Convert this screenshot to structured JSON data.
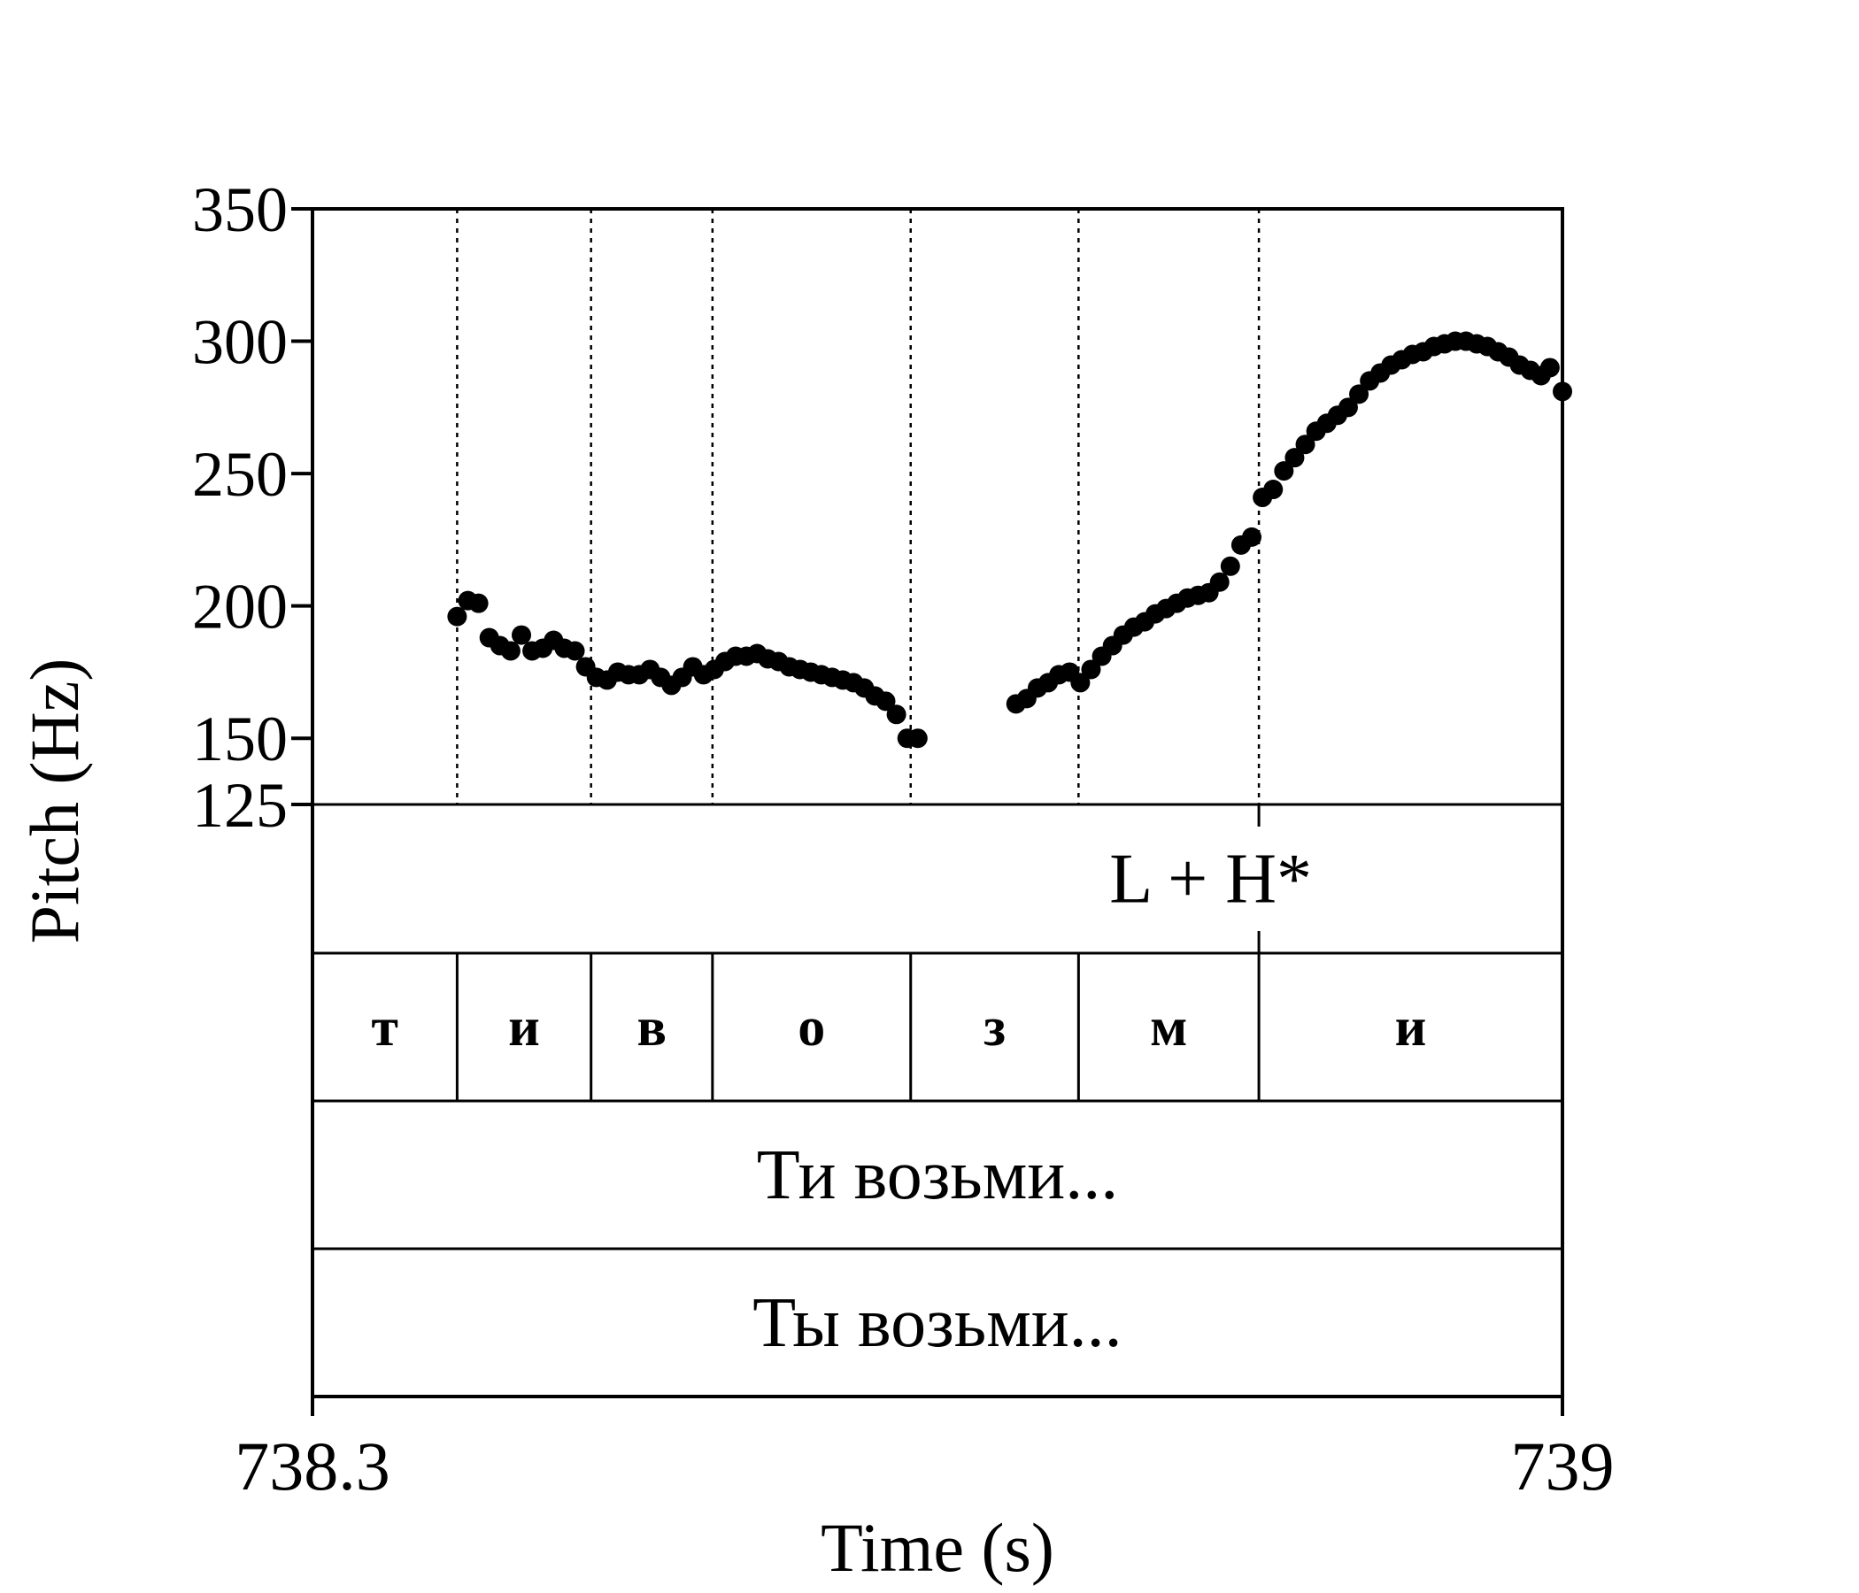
{
  "chart_data": {
    "type": "scatter",
    "xlabel": "Time (s)",
    "ylabel": "Pitch (Hz)",
    "xlim": [
      738.3,
      739
    ],
    "ylim": [
      125,
      350
    ],
    "x_ticks": [
      {
        "value": 738.3,
        "label": "738.3"
      },
      {
        "value": 739,
        "label": "739"
      }
    ],
    "y_ticks": [
      {
        "value": 350,
        "label": "350"
      },
      {
        "value": 300,
        "label": "300"
      },
      {
        "value": 250,
        "label": "250"
      },
      {
        "value": 200,
        "label": "200"
      },
      {
        "value": 150,
        "label": "150"
      },
      {
        "value": 125,
        "label": "125"
      }
    ],
    "segment_boundaries": [
      738.381,
      738.456,
      738.524,
      738.635,
      738.729,
      738.83
    ],
    "series": [
      {
        "color": "#000000",
        "points": [
          {
            "x": 738.381,
            "y": 196
          },
          {
            "x": 738.387,
            "y": 202
          },
          {
            "x": 738.393,
            "y": 201
          },
          {
            "x": 738.399,
            "y": 188
          },
          {
            "x": 738.405,
            "y": 185
          },
          {
            "x": 738.411,
            "y": 183
          },
          {
            "x": 738.417,
            "y": 189
          },
          {
            "x": 738.423,
            "y": 183
          },
          {
            "x": 738.429,
            "y": 184
          },
          {
            "x": 738.435,
            "y": 187
          },
          {
            "x": 738.441,
            "y": 184
          },
          {
            "x": 738.447,
            "y": 183
          },
          {
            "x": 738.453,
            "y": 177
          },
          {
            "x": 738.459,
            "y": 173
          },
          {
            "x": 738.465,
            "y": 172
          },
          {
            "x": 738.471,
            "y": 175
          },
          {
            "x": 738.477,
            "y": 174
          },
          {
            "x": 738.483,
            "y": 174
          },
          {
            "x": 738.489,
            "y": 176
          },
          {
            "x": 738.495,
            "y": 173
          },
          {
            "x": 738.501,
            "y": 170
          },
          {
            "x": 738.507,
            "y": 173
          },
          {
            "x": 738.513,
            "y": 177
          },
          {
            "x": 738.519,
            "y": 174
          },
          {
            "x": 738.525,
            "y": 176
          },
          {
            "x": 738.531,
            "y": 179
          },
          {
            "x": 738.537,
            "y": 181
          },
          {
            "x": 738.543,
            "y": 181
          },
          {
            "x": 738.549,
            "y": 182
          },
          {
            "x": 738.555,
            "y": 180
          },
          {
            "x": 738.561,
            "y": 179
          },
          {
            "x": 738.567,
            "y": 177
          },
          {
            "x": 738.573,
            "y": 176
          },
          {
            "x": 738.579,
            "y": 175
          },
          {
            "x": 738.585,
            "y": 174
          },
          {
            "x": 738.591,
            "y": 173
          },
          {
            "x": 738.597,
            "y": 172
          },
          {
            "x": 738.603,
            "y": 171
          },
          {
            "x": 738.609,
            "y": 169
          },
          {
            "x": 738.615,
            "y": 166
          },
          {
            "x": 738.621,
            "y": 164
          },
          {
            "x": 738.627,
            "y": 159
          },
          {
            "x": 738.633,
            "y": 150
          },
          {
            "x": 738.639,
            "y": 150
          },
          {
            "x": 738.694,
            "y": 163
          },
          {
            "x": 738.7,
            "y": 165
          },
          {
            "x": 738.706,
            "y": 169
          },
          {
            "x": 738.712,
            "y": 171
          },
          {
            "x": 738.718,
            "y": 174
          },
          {
            "x": 738.724,
            "y": 175
          },
          {
            "x": 738.73,
            "y": 171
          },
          {
            "x": 738.736,
            "y": 176
          },
          {
            "x": 738.742,
            "y": 181
          },
          {
            "x": 738.748,
            "y": 185
          },
          {
            "x": 738.754,
            "y": 189
          },
          {
            "x": 738.76,
            "y": 192
          },
          {
            "x": 738.766,
            "y": 194
          },
          {
            "x": 738.772,
            "y": 197
          },
          {
            "x": 738.778,
            "y": 199
          },
          {
            "x": 738.784,
            "y": 201
          },
          {
            "x": 738.79,
            "y": 203
          },
          {
            "x": 738.796,
            "y": 204
          },
          {
            "x": 738.802,
            "y": 205
          },
          {
            "x": 738.808,
            "y": 209
          },
          {
            "x": 738.814,
            "y": 215
          },
          {
            "x": 738.82,
            "y": 223
          },
          {
            "x": 738.826,
            "y": 226
          },
          {
            "x": 738.832,
            "y": 241
          },
          {
            "x": 738.838,
            "y": 244
          },
          {
            "x": 738.844,
            "y": 251
          },
          {
            "x": 738.85,
            "y": 256
          },
          {
            "x": 738.856,
            "y": 261
          },
          {
            "x": 738.862,
            "y": 266
          },
          {
            "x": 738.868,
            "y": 269
          },
          {
            "x": 738.874,
            "y": 272
          },
          {
            "x": 738.88,
            "y": 275
          },
          {
            "x": 738.886,
            "y": 280
          },
          {
            "x": 738.892,
            "y": 285
          },
          {
            "x": 738.898,
            "y": 288
          },
          {
            "x": 738.904,
            "y": 291
          },
          {
            "x": 738.91,
            "y": 293
          },
          {
            "x": 738.916,
            "y": 295
          },
          {
            "x": 738.922,
            "y": 296
          },
          {
            "x": 738.928,
            "y": 298
          },
          {
            "x": 738.934,
            "y": 299
          },
          {
            "x": 738.94,
            "y": 300
          },
          {
            "x": 738.946,
            "y": 300
          },
          {
            "x": 738.952,
            "y": 299
          },
          {
            "x": 738.958,
            "y": 298
          },
          {
            "x": 738.964,
            "y": 296
          },
          {
            "x": 738.97,
            "y": 294
          },
          {
            "x": 738.976,
            "y": 291
          },
          {
            "x": 738.982,
            "y": 289
          },
          {
            "x": 738.988,
            "y": 287
          },
          {
            "x": 738.993,
            "y": 290
          },
          {
            "x": 739.0,
            "y": 281
          }
        ]
      }
    ],
    "tiers": [
      {
        "name": "tones",
        "intervals": [
          {
            "start": 738.3,
            "end": 739,
            "label": "L + H*",
            "label_x": 738.803
          }
        ],
        "points": [
          738.83
        ]
      },
      {
        "name": "segments",
        "intervals": [
          {
            "start": 738.3,
            "end": 738.381,
            "label": "т"
          },
          {
            "start": 738.381,
            "end": 738.456,
            "label": "и"
          },
          {
            "start": 738.456,
            "end": 738.524,
            "label": "в"
          },
          {
            "start": 738.524,
            "end": 738.635,
            "label": "о"
          },
          {
            "start": 738.635,
            "end": 738.729,
            "label": "з"
          },
          {
            "start": 738.729,
            "end": 738.83,
            "label": "м"
          },
          {
            "start": 738.83,
            "end": 739.0,
            "label": "и"
          }
        ]
      },
      {
        "name": "words",
        "intervals": [
          {
            "start": 738.3,
            "end": 739,
            "label": "Ти возьми..."
          }
        ]
      },
      {
        "name": "translation",
        "intervals": [
          {
            "start": 738.3,
            "end": 739,
            "label": "Ты возьми..."
          }
        ]
      }
    ]
  }
}
